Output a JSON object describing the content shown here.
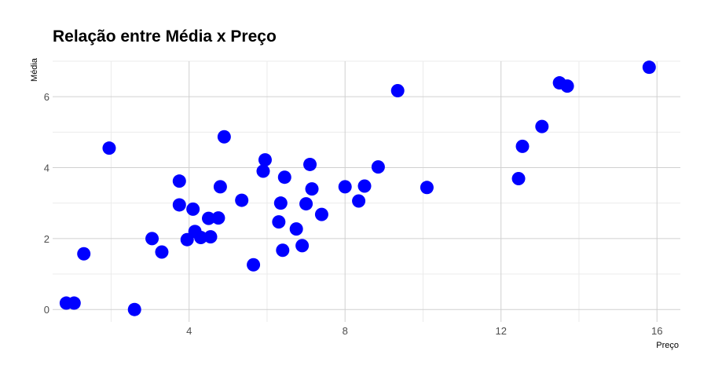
{
  "chart_data": {
    "type": "scatter",
    "title": "Relação entre Média x Preço",
    "xlabel": "Preço",
    "ylabel": "Média",
    "xlim": [
      0.5,
      16.6
    ],
    "ylim": [
      -0.35,
      7.0
    ],
    "x_ticks": [
      4,
      8,
      12,
      16
    ],
    "x_tick_labels": [
      "4",
      "8",
      "12",
      "16"
    ],
    "y_ticks": [
      0,
      2,
      4,
      6
    ],
    "y_tick_labels": [
      "0",
      "2",
      "4",
      "6"
    ],
    "grid": true,
    "marker_color": "#0000ff",
    "points": [
      {
        "x": 0.85,
        "y": 0.18
      },
      {
        "x": 1.05,
        "y": 0.18
      },
      {
        "x": 1.3,
        "y": 1.57
      },
      {
        "x": 1.95,
        "y": 4.55
      },
      {
        "x": 2.6,
        "y": 0.0
      },
      {
        "x": 3.05,
        "y": 2.0
      },
      {
        "x": 3.3,
        "y": 1.62
      },
      {
        "x": 3.75,
        "y": 2.95
      },
      {
        "x": 3.75,
        "y": 3.62
      },
      {
        "x": 3.95,
        "y": 1.97
      },
      {
        "x": 4.1,
        "y": 2.83
      },
      {
        "x": 4.15,
        "y": 2.2
      },
      {
        "x": 4.3,
        "y": 2.03
      },
      {
        "x": 4.5,
        "y": 2.57
      },
      {
        "x": 4.55,
        "y": 2.05
      },
      {
        "x": 4.75,
        "y": 2.58
      },
      {
        "x": 4.8,
        "y": 3.46
      },
      {
        "x": 4.9,
        "y": 4.87
      },
      {
        "x": 5.35,
        "y": 3.08
      },
      {
        "x": 5.65,
        "y": 1.26
      },
      {
        "x": 5.9,
        "y": 3.9
      },
      {
        "x": 5.95,
        "y": 4.22
      },
      {
        "x": 6.3,
        "y": 2.47
      },
      {
        "x": 6.35,
        "y": 3.0
      },
      {
        "x": 6.4,
        "y": 1.67
      },
      {
        "x": 6.45,
        "y": 3.73
      },
      {
        "x": 6.75,
        "y": 2.27
      },
      {
        "x": 6.9,
        "y": 1.8
      },
      {
        "x": 7.0,
        "y": 2.98
      },
      {
        "x": 7.1,
        "y": 4.09
      },
      {
        "x": 7.15,
        "y": 3.4
      },
      {
        "x": 7.4,
        "y": 2.68
      },
      {
        "x": 8.0,
        "y": 3.46
      },
      {
        "x": 8.35,
        "y": 3.06
      },
      {
        "x": 8.5,
        "y": 3.48
      },
      {
        "x": 8.85,
        "y": 4.02
      },
      {
        "x": 9.35,
        "y": 6.17
      },
      {
        "x": 10.1,
        "y": 3.44
      },
      {
        "x": 12.45,
        "y": 3.69
      },
      {
        "x": 12.55,
        "y": 4.6
      },
      {
        "x": 13.05,
        "y": 5.16
      },
      {
        "x": 13.5,
        "y": 6.39
      },
      {
        "x": 13.7,
        "y": 6.3
      },
      {
        "x": 15.8,
        "y": 6.83
      }
    ]
  }
}
